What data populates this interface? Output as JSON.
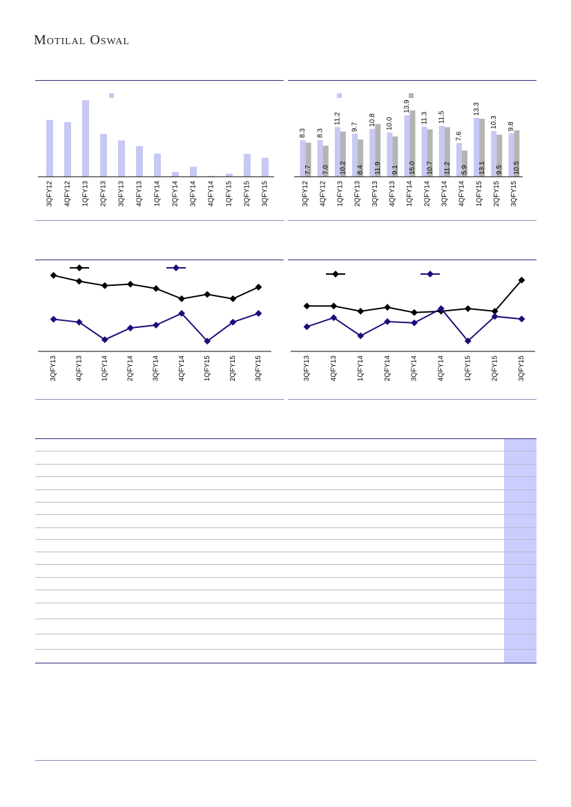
{
  "header": {
    "logo_text": "Motilal Oswal"
  },
  "colors": {
    "bar_light": "#c8c8f5",
    "bar_grey": "#b4b4b4",
    "line_black": "#000000",
    "line_navy": "#1a0c7a",
    "rule": "#2b2b7a",
    "highlight_column": "#ccccff"
  },
  "chart_data": [
    {
      "type": "bar",
      "categories": [
        "3QFY12",
        "4QFY12",
        "1QFY13",
        "2QFY13",
        "3QFY13",
        "4QFY13",
        "1QFY14",
        "2QFY14",
        "3QFY14",
        "4QFY14",
        "1QFY15",
        "2QFY15",
        "3QFY15"
      ],
      "series": [
        {
          "values": [
            15.2,
            14.6,
            20.5,
            11.5,
            9.7,
            8.2,
            6.2,
            1.3,
            2.7,
            0.2,
            0.8,
            6.1,
            5.1
          ]
        }
      ],
      "ylim": [
        0,
        22
      ],
      "legend": "top-left",
      "grid": false
    },
    {
      "type": "bar",
      "categories": [
        "3QFY12",
        "4QFY12",
        "1QFY13",
        "2QFY13",
        "3QFY13",
        "4QFY13",
        "1QFY14",
        "2QFY14",
        "3QFY14",
        "4QFY14",
        "1QFY15",
        "2QFY15",
        "3QFY15"
      ],
      "series": [
        {
          "values": [
            8.3,
            8.3,
            11.2,
            9.7,
            10.8,
            10.0,
            13.9,
            11.3,
            11.5,
            7.6,
            13.3,
            10.3,
            9.8
          ]
        },
        {
          "values": [
            7.7,
            7.0,
            10.2,
            8.4,
            11.9,
            9.1,
            15.0,
            10.7,
            11.2,
            5.9,
            13.1,
            9.5,
            10.5
          ]
        }
      ],
      "ylim": [
        0,
        17
      ],
      "legend": "top",
      "grid": false
    },
    {
      "type": "line",
      "categories": [
        "3QFY13",
        "4QFY13",
        "1QFY14",
        "2QFY14",
        "3QFY14",
        "4QFY14",
        "1QFY15",
        "2QFY15",
        "3QFY15"
      ],
      "series": [
        {
          "values": [
            92,
            88,
            85,
            86,
            83,
            76,
            79,
            76,
            84
          ]
        },
        {
          "values": [
            62,
            60,
            48,
            56,
            58,
            66,
            47,
            60,
            66
          ]
        }
      ],
      "ylim": [
        40,
        100
      ],
      "legend": "top",
      "grid": false
    },
    {
      "type": "line",
      "categories": [
        "3QFY13",
        "4QFY13",
        "1QFY14",
        "2QFY14",
        "3QFY14",
        "4QFY14",
        "1QFY15",
        "2QFY15",
        "3QFY15"
      ],
      "series": [
        {
          "values": [
            80,
            80,
            76,
            79,
            75,
            76,
            78,
            76,
            100
          ]
        },
        {
          "values": [
            64,
            71,
            57,
            68,
            67,
            78,
            53,
            72,
            70
          ]
        }
      ],
      "ylim": [
        45,
        110
      ],
      "legend": "top",
      "grid": false
    }
  ]
}
